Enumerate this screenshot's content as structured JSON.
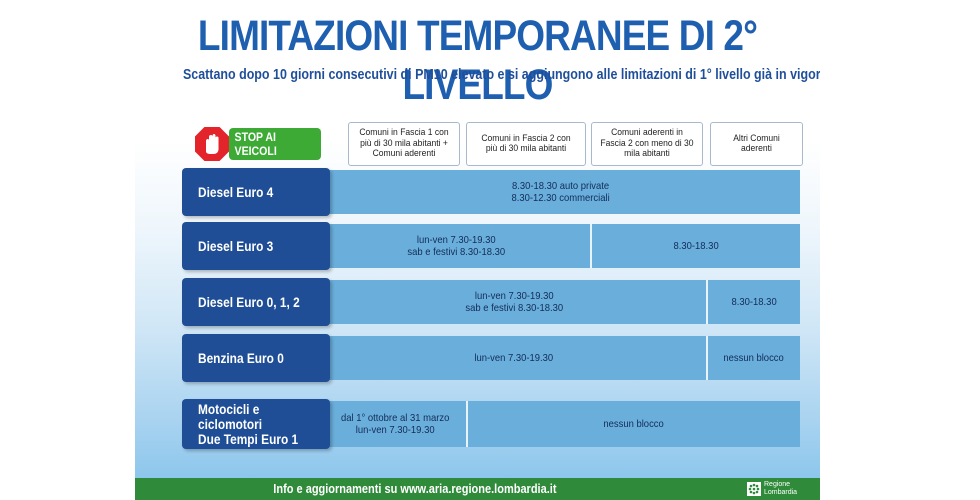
{
  "title": "LIMITAZIONI TEMPORANEE DI 2° LIVELLO",
  "subtitle": "Scattano dopo 10 giorni consecutivi di PM10 elevato e si aggiungono alle limitazioni di 1° livello già in vigore",
  "stop_label": "STOP AI VEICOLI",
  "columns": [
    "Comuni in Fascia 1 con più di 30 mila abitanti + Comuni aderenti",
    "Comuni in Fascia 2 con più di 30 mila abitanti",
    "Comuni aderenti in Fascia 2 con meno di 30 mila abitanti",
    "Altri Comuni aderenti"
  ],
  "rows": [
    {
      "label": "Diesel Euro 4",
      "cells": [
        "8.30-18.30 auto private\n8.30-12.30 commerciali"
      ]
    },
    {
      "label": "Diesel Euro 3",
      "cells": [
        "lun-ven 7.30-19.30\nsab e festivi 8.30-18.30",
        "8.30-18.30"
      ]
    },
    {
      "label": "Diesel Euro 0, 1, 2",
      "cells": [
        "lun-ven 7.30-19.30\nsab e festivi 8.30-18.30",
        "8.30-18.30"
      ]
    },
    {
      "label": "Benzina Euro 0",
      "cells": [
        "lun-ven 7.30-19.30",
        "nessun blocco"
      ]
    },
    {
      "label": "Motocicli e ciclomotori\nDue Tempi Euro 1",
      "cells": [
        "dal 1° ottobre al 31 marzo\nlun-ven 7.30-19.30",
        "nessun blocco"
      ]
    }
  ],
  "footer": {
    "text": "Info e aggiornamenti su www.aria.regione.lombardia.it",
    "logo_text": "Regione\nLombardia"
  },
  "colors": {
    "title_blue": "#1f5fb0",
    "row_label_blue": "#1f4e96",
    "cell_blue": "#6aafdc",
    "stop_green": "#3daa35",
    "stop_red": "#e3242b",
    "footer_green": "#2f8a3a"
  }
}
